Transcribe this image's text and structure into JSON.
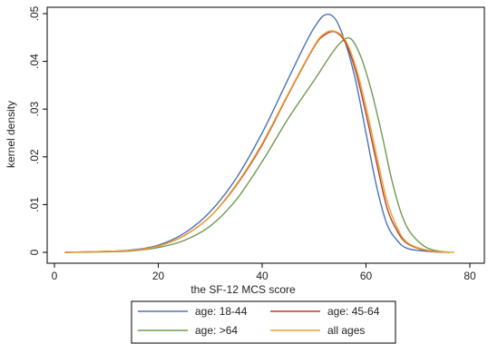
{
  "chart_data": {
    "type": "line",
    "xlabel": "the SF-12 MCS score",
    "ylabel": "kernel density",
    "xlim": [
      0,
      80
    ],
    "ylim": [
      0,
      0.05
    ],
    "x_ticks": [
      {
        "value": 0,
        "label": "0"
      },
      {
        "value": 20,
        "label": "20"
      },
      {
        "value": 40,
        "label": "40"
      },
      {
        "value": 60,
        "label": "60"
      },
      {
        "value": 80,
        "label": "80"
      }
    ],
    "y_ticks": [
      {
        "value": 0,
        "label": "0"
      },
      {
        "value": 0.01,
        "label": ".01"
      },
      {
        "value": 0.02,
        "label": ".02"
      },
      {
        "value": 0.03,
        "label": ".03"
      },
      {
        "value": 0.04,
        "label": ".04"
      },
      {
        "value": 0.05,
        "label": ".05"
      }
    ],
    "grid": false,
    "legend_position": "bottom",
    "series": [
      {
        "name": "age: 18-44",
        "color": "#4a74b0",
        "points": [
          [
            2,
            0
          ],
          [
            10,
            0.0002
          ],
          [
            15,
            0.0005
          ],
          [
            20,
            0.0015
          ],
          [
            25,
            0.004
          ],
          [
            30,
            0.0085
          ],
          [
            35,
            0.0155
          ],
          [
            40,
            0.025
          ],
          [
            44,
            0.034
          ],
          [
            48,
            0.043
          ],
          [
            50,
            0.047
          ],
          [
            52,
            0.0497
          ],
          [
            54,
            0.049
          ],
          [
            56,
            0.044
          ],
          [
            58,
            0.036
          ],
          [
            60,
            0.025
          ],
          [
            62,
            0.014
          ],
          [
            64,
            0.006
          ],
          [
            66,
            0.0025
          ],
          [
            68,
            0.0008
          ],
          [
            72,
            0.0002
          ],
          [
            76,
            0
          ]
        ]
      },
      {
        "name": "age: 45-64",
        "color": "#b04030",
        "points": [
          [
            2,
            0
          ],
          [
            10,
            0.0002
          ],
          [
            15,
            0.0004
          ],
          [
            20,
            0.0013
          ],
          [
            25,
            0.0035
          ],
          [
            30,
            0.0075
          ],
          [
            35,
            0.014
          ],
          [
            40,
            0.0225
          ],
          [
            45,
            0.033
          ],
          [
            50,
            0.043
          ],
          [
            52,
            0.0455
          ],
          [
            54,
            0.0462
          ],
          [
            56,
            0.044
          ],
          [
            58,
            0.038
          ],
          [
            60,
            0.029
          ],
          [
            62,
            0.019
          ],
          [
            64,
            0.0095
          ],
          [
            66,
            0.0045
          ],
          [
            68,
            0.0018
          ],
          [
            72,
            0.0003
          ],
          [
            76,
            0
          ]
        ]
      },
      {
        "name": "age: >64",
        "color": "#6e9a50",
        "points": [
          [
            2,
            0
          ],
          [
            10,
            0.0001
          ],
          [
            15,
            0.0003
          ],
          [
            20,
            0.001
          ],
          [
            25,
            0.0025
          ],
          [
            30,
            0.0055
          ],
          [
            35,
            0.011
          ],
          [
            40,
            0.019
          ],
          [
            45,
            0.028
          ],
          [
            50,
            0.036
          ],
          [
            53,
            0.041
          ],
          [
            55,
            0.0438
          ],
          [
            57,
            0.0448
          ],
          [
            59,
            0.041
          ],
          [
            61,
            0.034
          ],
          [
            63,
            0.025
          ],
          [
            65,
            0.015
          ],
          [
            67,
            0.0075
          ],
          [
            69,
            0.0035
          ],
          [
            72,
            0.0008
          ],
          [
            76,
            0
          ]
        ]
      },
      {
        "name": "all ages",
        "color": "#f0a030",
        "points": [
          [
            2,
            0
          ],
          [
            10,
            0.0002
          ],
          [
            15,
            0.0004
          ],
          [
            20,
            0.0013
          ],
          [
            25,
            0.0035
          ],
          [
            30,
            0.0075
          ],
          [
            35,
            0.0142
          ],
          [
            40,
            0.0228
          ],
          [
            45,
            0.0332
          ],
          [
            50,
            0.0432
          ],
          [
            52,
            0.0458
          ],
          [
            54,
            0.0463
          ],
          [
            56,
            0.0445
          ],
          [
            58,
            0.039
          ],
          [
            60,
            0.0305
          ],
          [
            62,
            0.0205
          ],
          [
            64,
            0.011
          ],
          [
            66,
            0.0052
          ],
          [
            68,
            0.002
          ],
          [
            72,
            0.0004
          ],
          [
            77,
            0
          ]
        ]
      }
    ]
  }
}
